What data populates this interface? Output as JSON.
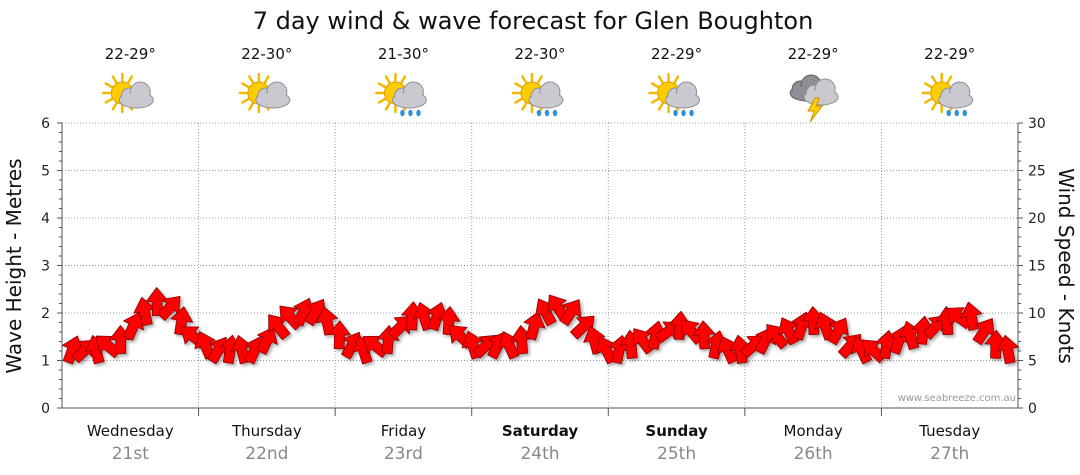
{
  "chart_data": {
    "type": "line",
    "title": "7 day wind & wave forecast for Glen Boughton",
    "ylabel_left": "Wave Height - Metres",
    "ylabel_right": "Wind Speed - Knots",
    "ylim_left": [
      0,
      6
    ],
    "ylim_right": [
      0,
      30
    ],
    "yticks_left": [
      0,
      1,
      2,
      3,
      4,
      5,
      6
    ],
    "yticks_right": [
      0,
      5,
      10,
      15,
      20,
      25,
      30
    ],
    "grid": true,
    "credit": "www.seabreeze.com.au",
    "days": [
      {
        "name": "Wednesday",
        "date": "21st",
        "temp": "22-29°",
        "weather": "partly-cloudy",
        "bold": false
      },
      {
        "name": "Thursday",
        "date": "22nd",
        "temp": "22-30°",
        "weather": "partly-cloudy",
        "bold": false
      },
      {
        "name": "Friday",
        "date": "23rd",
        "temp": "21-30°",
        "weather": "showers",
        "bold": false
      },
      {
        "name": "Saturday",
        "date": "24th",
        "temp": "22-30°",
        "weather": "showers",
        "bold": true
      },
      {
        "name": "Sunday",
        "date": "25th",
        "temp": "22-29°",
        "weather": "showers",
        "bold": true
      },
      {
        "name": "Monday",
        "date": "26th",
        "temp": "22-29°",
        "weather": "storm",
        "bold": false
      },
      {
        "name": "Tuesday",
        "date": "27th",
        "temp": "22-29°",
        "weather": "showers",
        "bold": false
      }
    ],
    "series": [
      {
        "unit": "knots",
        "color": "#ff0000",
        "values": [
          6.0,
          6.0,
          6.0,
          6.5,
          7.0,
          8.5,
          10.0,
          11.0,
          10.5,
          9.0,
          7.5,
          6.5,
          6.0,
          6.0,
          6.0,
          6.0,
          7.0,
          8.5,
          9.5,
          10.0,
          10.0,
          9.0,
          7.5,
          6.5,
          6.0,
          6.5,
          7.0,
          8.5,
          9.5,
          9.5,
          9.5,
          9.0,
          7.5,
          6.5,
          6.5,
          6.5,
          6.5,
          7.0,
          8.5,
          10.0,
          10.5,
          10.0,
          8.5,
          7.0,
          6.0,
          6.0,
          6.5,
          7.0,
          7.5,
          8.0,
          8.5,
          8.0,
          7.5,
          6.5,
          6.0,
          6.0,
          6.5,
          7.0,
          7.5,
          8.0,
          8.5,
          9.0,
          8.5,
          8.0,
          6.5,
          6.0,
          6.0,
          6.5,
          7.0,
          7.5,
          8.0,
          8.5,
          9.0,
          9.5,
          9.5,
          8.0,
          6.5,
          6.0
        ]
      }
    ]
  }
}
